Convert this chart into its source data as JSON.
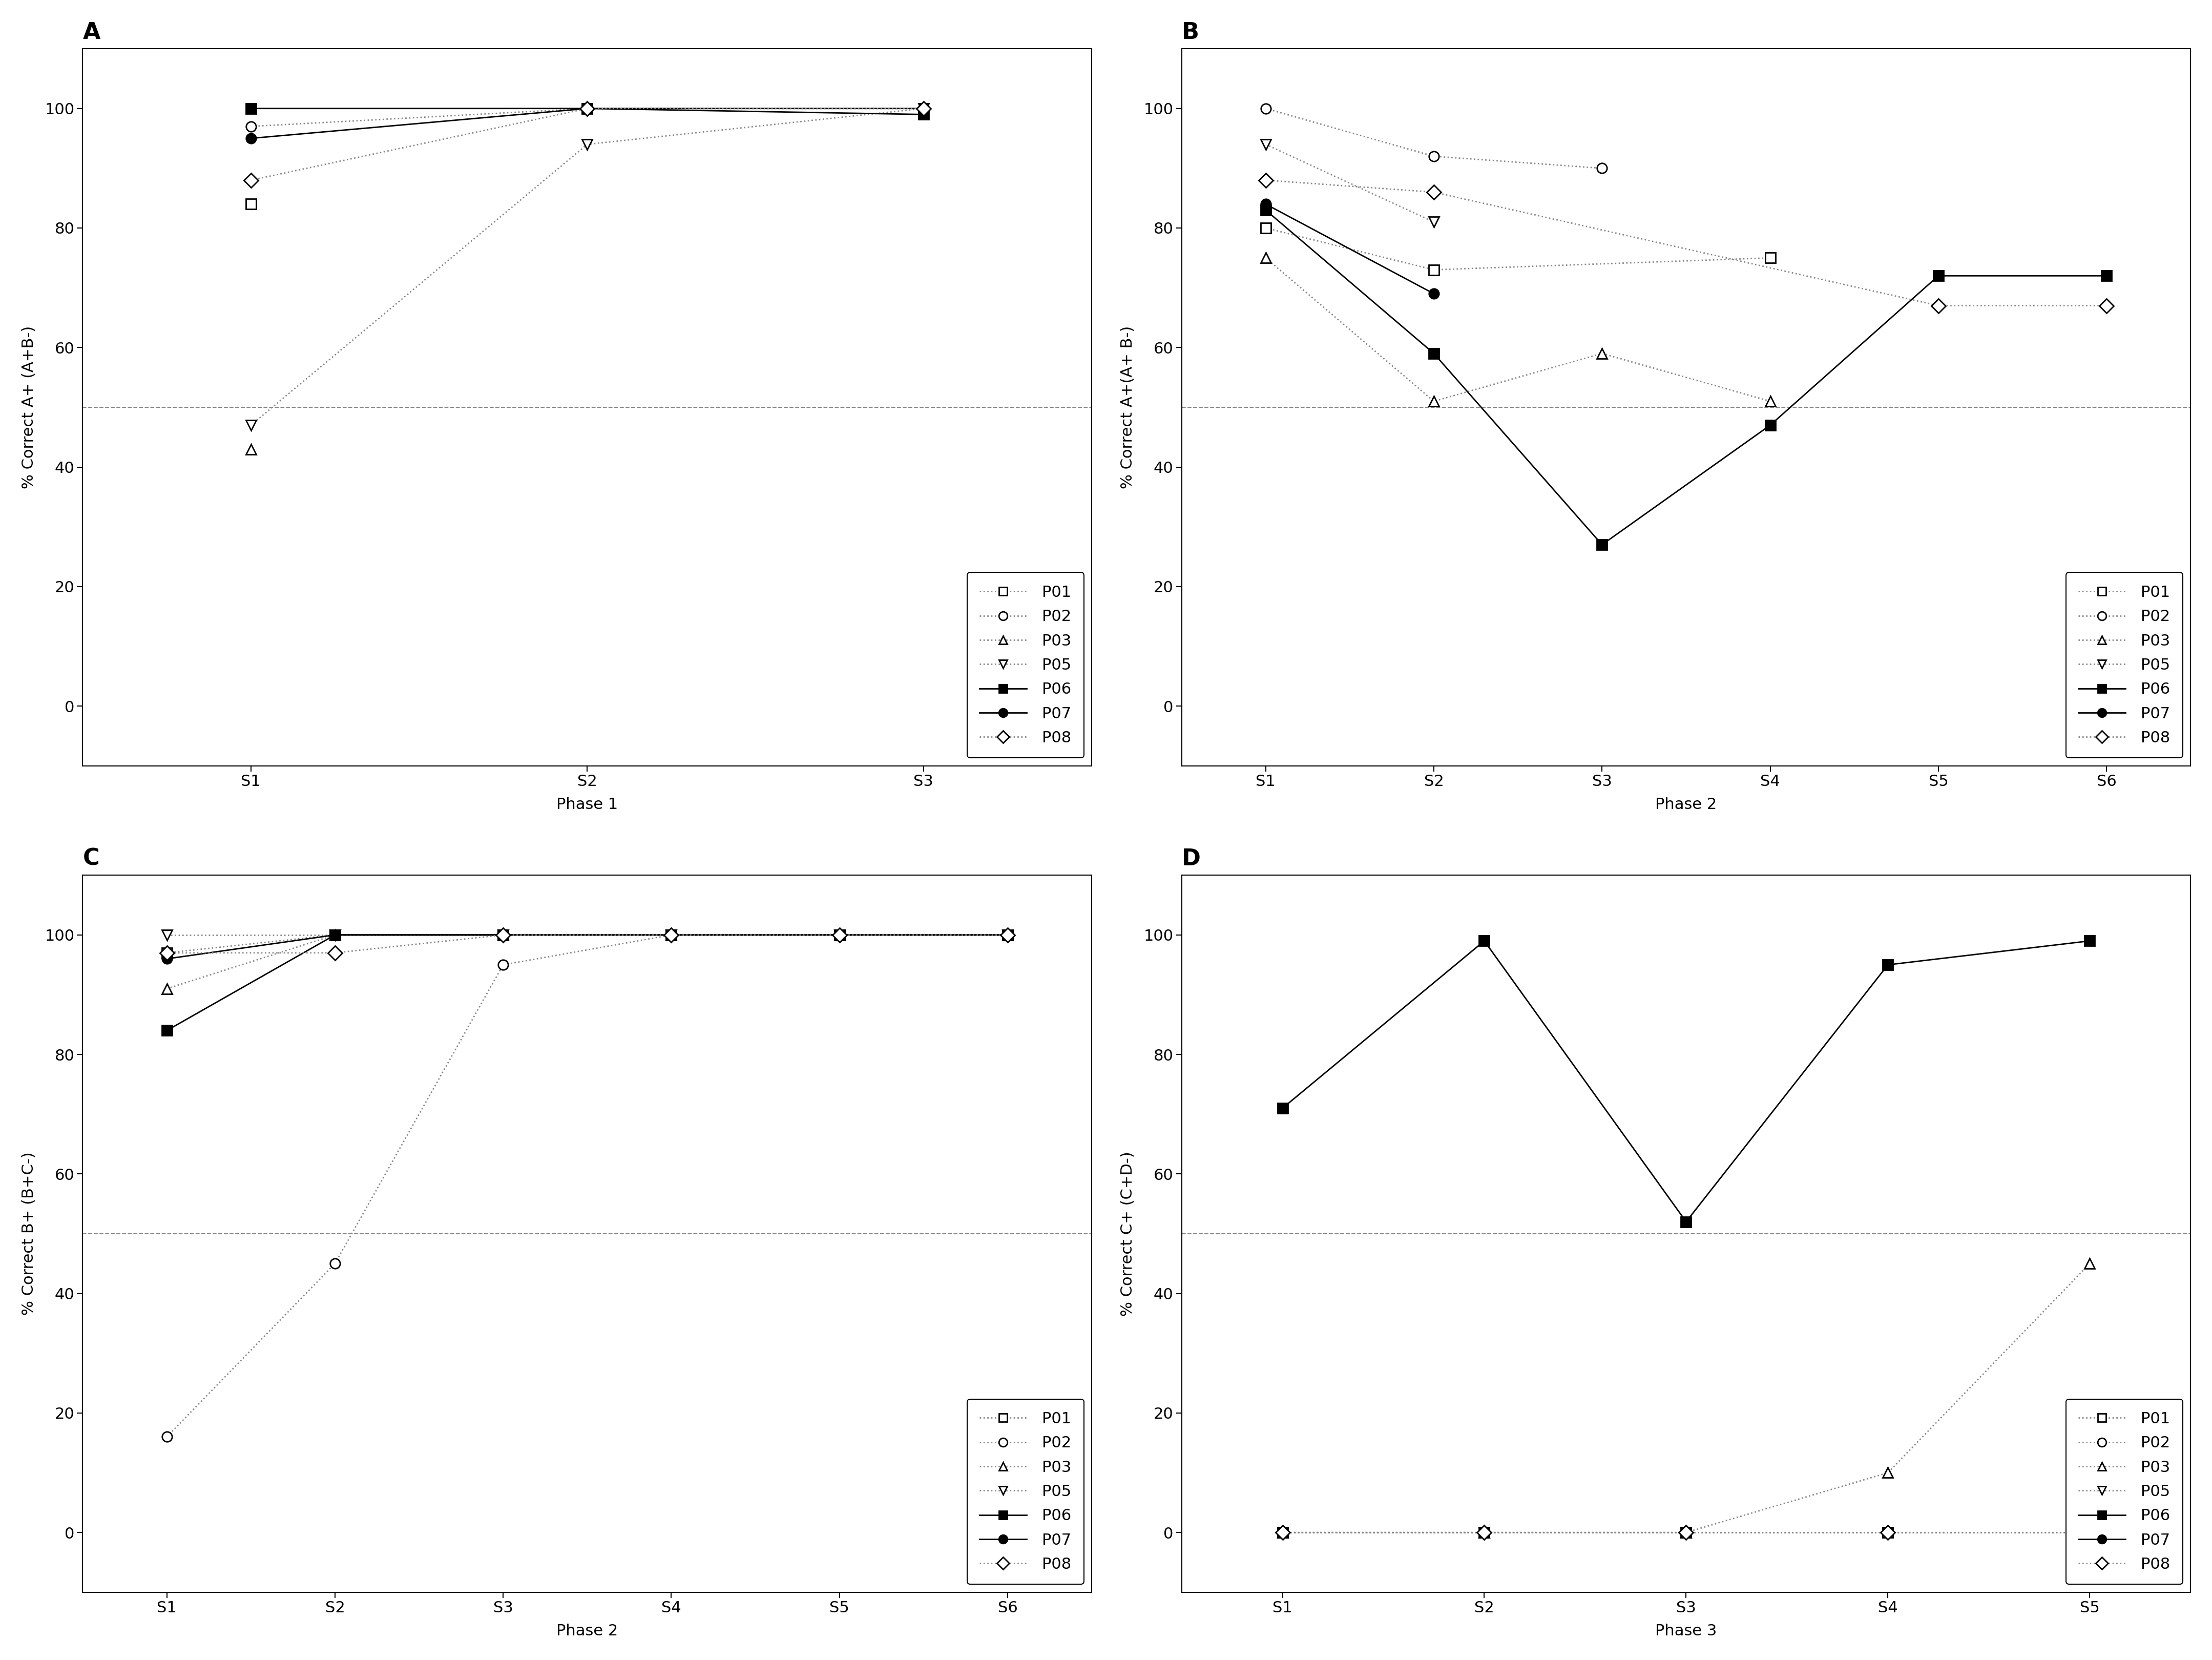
{
  "panel_A": {
    "title": "A",
    "xlabel": "Phase 1",
    "ylabel": "% Correct A+ (A+B-)",
    "xticks": [
      "S1",
      "S2",
      "S3"
    ],
    "ylim": [
      -10,
      110
    ],
    "yticks": [
      0,
      20,
      40,
      60,
      80,
      100
    ],
    "hline": 50,
    "series": {
      "P01": {
        "x": [
          0
        ],
        "y": [
          84
        ],
        "marker": "s",
        "filled": false,
        "solid": false
      },
      "P02": {
        "x": [
          0,
          1,
          2
        ],
        "y": [
          97,
          100,
          100
        ],
        "marker": "o",
        "filled": false,
        "solid": false
      },
      "P03": {
        "x": [
          0
        ],
        "y": [
          43
        ],
        "marker": "^",
        "filled": false,
        "solid": false
      },
      "P05": {
        "x": [
          0,
          1,
          2
        ],
        "y": [
          47,
          94,
          100
        ],
        "marker": "v",
        "filled": false,
        "solid": false
      },
      "P06": {
        "x": [
          0,
          1,
          2
        ],
        "y": [
          100,
          100,
          99
        ],
        "marker": "s",
        "filled": true,
        "solid": true
      },
      "P07": {
        "x": [
          0,
          1,
          2
        ],
        "y": [
          95,
          100,
          100
        ],
        "marker": "o",
        "filled": true,
        "solid": true
      },
      "P08": {
        "x": [
          0,
          1,
          2
        ],
        "y": [
          88,
          100,
          100
        ],
        "marker": "D",
        "filled": false,
        "solid": false
      }
    }
  },
  "panel_B": {
    "title": "B",
    "xlabel": "Phase 2",
    "ylabel": "% Correct A+(A+ B-)",
    "xticks": [
      "S1",
      "S2",
      "S3",
      "S4",
      "S5",
      "S6"
    ],
    "ylim": [
      -10,
      110
    ],
    "yticks": [
      0,
      20,
      40,
      60,
      80,
      100
    ],
    "hline": 50,
    "series": {
      "P01": {
        "x": [
          0,
          1,
          3
        ],
        "y": [
          80,
          73,
          75
        ],
        "marker": "s",
        "filled": false,
        "solid": false
      },
      "P02": {
        "x": [
          0,
          1,
          2
        ],
        "y": [
          100,
          92,
          90
        ],
        "marker": "o",
        "filled": false,
        "solid": false
      },
      "P03": {
        "x": [
          0,
          1,
          2,
          3
        ],
        "y": [
          75,
          51,
          59,
          51
        ],
        "marker": "^",
        "filled": false,
        "solid": false
      },
      "P05": {
        "x": [
          0,
          1
        ],
        "y": [
          94,
          81
        ],
        "marker": "v",
        "filled": false,
        "solid": false
      },
      "P06": {
        "x": [
          0,
          1,
          2,
          3,
          4,
          5
        ],
        "y": [
          83,
          59,
          27,
          47,
          72,
          72
        ],
        "marker": "s",
        "filled": true,
        "solid": true
      },
      "P07": {
        "x": [
          0,
          1
        ],
        "y": [
          84,
          69
        ],
        "marker": "o",
        "filled": true,
        "solid": true
      },
      "P08": {
        "x": [
          0,
          1,
          4,
          5
        ],
        "y": [
          88,
          86,
          67,
          67
        ],
        "marker": "D",
        "filled": false,
        "solid": false
      }
    }
  },
  "panel_C": {
    "title": "C",
    "xlabel": "Phase 2",
    "ylabel": "% Correct B+ (B+C-)",
    "xticks": [
      "S1",
      "S2",
      "S3",
      "S4",
      "S5",
      "S6"
    ],
    "ylim": [
      -10,
      110
    ],
    "yticks": [
      0,
      20,
      40,
      60,
      80,
      100
    ],
    "hline": 50,
    "series": {
      "P01": {
        "x": [
          0,
          1,
          2,
          3,
          4,
          5
        ],
        "y": [
          97,
          100,
          100,
          100,
          100,
          100
        ],
        "marker": "s",
        "filled": false,
        "solid": false
      },
      "P02": {
        "x": [
          0,
          1,
          2,
          3,
          4,
          5
        ],
        "y": [
          16,
          45,
          95,
          100,
          100,
          100
        ],
        "marker": "o",
        "filled": false,
        "solid": false
      },
      "P03": {
        "x": [
          0,
          1,
          2,
          3,
          4,
          5
        ],
        "y": [
          91,
          100,
          100,
          100,
          100,
          100
        ],
        "marker": "^",
        "filled": false,
        "solid": false
      },
      "P05": {
        "x": [
          0,
          1,
          2,
          3,
          4,
          5
        ],
        "y": [
          100,
          100,
          100,
          100,
          100,
          100
        ],
        "marker": "v",
        "filled": false,
        "solid": false
      },
      "P06": {
        "x": [
          0,
          1,
          2,
          3,
          4,
          5
        ],
        "y": [
          84,
          100,
          100,
          100,
          100,
          100
        ],
        "marker": "s",
        "filled": true,
        "solid": true
      },
      "P07": {
        "x": [
          0,
          1,
          2,
          3,
          4,
          5
        ],
        "y": [
          96,
          100,
          100,
          100,
          100,
          100
        ],
        "marker": "o",
        "filled": true,
        "solid": true
      },
      "P08": {
        "x": [
          0,
          1,
          2,
          3,
          4,
          5
        ],
        "y": [
          97,
          97,
          100,
          100,
          100,
          100
        ],
        "marker": "D",
        "filled": false,
        "solid": false
      }
    }
  },
  "panel_D": {
    "title": "D",
    "xlabel": "Phase 3",
    "ylabel": "% Correct C+ (C+D-)",
    "xticks": [
      "S1",
      "S2",
      "S3",
      "S4",
      "S5"
    ],
    "ylim": [
      -10,
      110
    ],
    "yticks": [
      0,
      20,
      40,
      60,
      80,
      100
    ],
    "hline": 50,
    "series": {
      "P01": {
        "x": [
          0,
          1,
          2,
          3,
          4
        ],
        "y": [
          0,
          0,
          0,
          0,
          0
        ],
        "marker": "s",
        "filled": false,
        "solid": false
      },
      "P02": {
        "x": [
          0,
          1
        ],
        "y": [
          0,
          0
        ],
        "marker": "o",
        "filled": false,
        "solid": false
      },
      "P03": {
        "x": [
          0,
          1,
          2,
          3,
          4
        ],
        "y": [
          0,
          0,
          0,
          10,
          45
        ],
        "marker": "^",
        "filled": false,
        "solid": false
      },
      "P05": {
        "x": [
          0,
          1,
          2,
          3,
          4
        ],
        "y": [
          0,
          0,
          0,
          0,
          0
        ],
        "marker": "v",
        "filled": false,
        "solid": false
      },
      "P06": {
        "x": [
          0,
          1,
          2,
          3,
          4
        ],
        "y": [
          71,
          99,
          52,
          95,
          99
        ],
        "marker": "s",
        "filled": true,
        "solid": true
      },
      "P07": {
        "x": [],
        "y": [],
        "marker": "o",
        "filled": true,
        "solid": true
      },
      "P08": {
        "x": [
          0,
          1,
          2,
          3,
          4
        ],
        "y": [
          0,
          0,
          0,
          0,
          0
        ],
        "marker": "D",
        "filled": false,
        "solid": false
      }
    }
  },
  "legend_labels": [
    "P01",
    "P02",
    "P03",
    "P05",
    "P06",
    "P07",
    "P08"
  ],
  "legend_markers": [
    "s",
    "o",
    "^",
    "v",
    "s",
    "o",
    "D"
  ],
  "legend_filled": [
    false,
    false,
    false,
    false,
    true,
    true,
    false
  ],
  "legend_solid": [
    false,
    false,
    false,
    false,
    true,
    true,
    false
  ],
  "open_color": "#000000",
  "solid_color": "#000000",
  "dotted_color": "#888888",
  "marker_size": 14,
  "linewidth": 2.0,
  "title_fontsize": 32,
  "label_fontsize": 22,
  "tick_fontsize": 22,
  "legend_fontsize": 22
}
